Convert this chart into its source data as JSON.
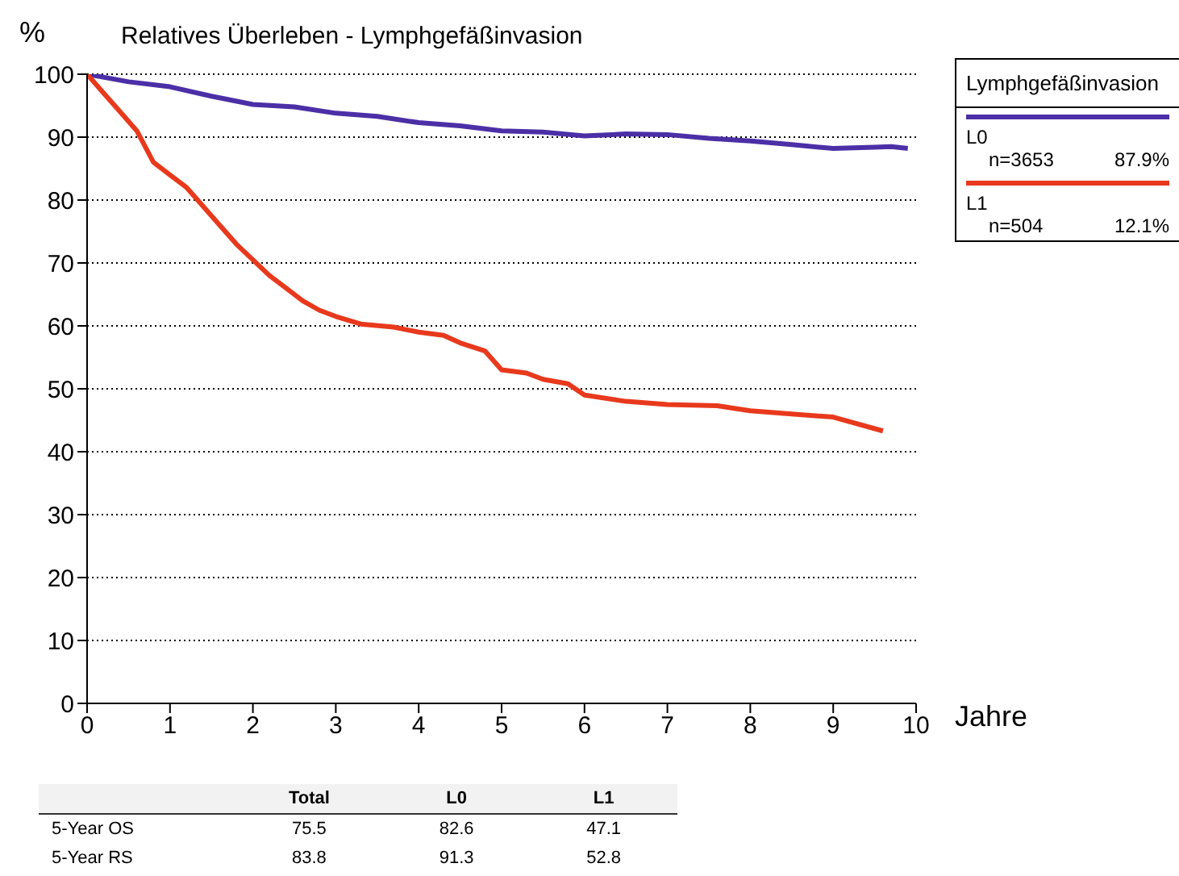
{
  "chart_data": {
    "type": "line",
    "title": "Relatives Überleben - Lymphgefäßinvasion",
    "xlabel": "Jahre",
    "ylabel": "%",
    "legend_title": "Lymphgefäßinvasion",
    "legend": "top right",
    "grid": "y",
    "marker": "none",
    "line_style": "solid",
    "xlim": [
      0,
      10
    ],
    "xticks": [
      0,
      1,
      2,
      3,
      4,
      5,
      6,
      7,
      8,
      9,
      10
    ],
    "ylim": [
      0,
      100
    ],
    "yticks": [
      0,
      10,
      20,
      30,
      40,
      50,
      60,
      70,
      80,
      90,
      100
    ],
    "series": [
      {
        "name": "L0",
        "color": "#4b2fa6",
        "x": [
          0,
          0.5,
          1,
          1.5,
          2,
          2.5,
          3,
          3.5,
          4,
          4.5,
          5,
          5.5,
          6,
          6.5,
          7,
          7.5,
          8,
          8.5,
          9,
          9.5,
          9.7,
          9.9
        ],
        "values": [
          100,
          98.8,
          98,
          96.5,
          95.2,
          94.8,
          93.8,
          93.3,
          92.3,
          91.8,
          91,
          90.8,
          90.2,
          90.5,
          90.4,
          89.8,
          89.4,
          88.8,
          88.2,
          88.4,
          88.5,
          88.2
        ]
      },
      {
        "name": "L1",
        "color": "#e8391d",
        "x": [
          0,
          0.2,
          0.4,
          0.6,
          0.8,
          1,
          1.2,
          1.4,
          1.6,
          1.8,
          2,
          2.2,
          2.4,
          2.6,
          2.8,
          3,
          3.3,
          3.7,
          4,
          4.3,
          4.5,
          4.8,
          5,
          5.3,
          5.5,
          5.8,
          6,
          6.5,
          7,
          7.6,
          8,
          8.5,
          9,
          9.6
        ],
        "values": [
          100,
          97,
          94,
          91,
          86,
          84,
          82,
          79,
          76,
          73,
          70.5,
          68,
          66,
          64,
          62.5,
          61.5,
          60.3,
          59.8,
          59,
          58.5,
          57.3,
          56,
          53,
          52.5,
          51.5,
          50.8,
          49,
          48,
          47.5,
          47.3,
          46.5,
          46,
          45.5,
          43.3
        ]
      }
    ],
    "annotations": [
      "n=3653",
      "87.9%",
      "n=504",
      "12.1%",
      "Total",
      "L0",
      "L1",
      "5-Year OS",
      "75.5",
      "82.6",
      "47.1",
      "5-Year RS",
      "83.8",
      "91.3",
      "52.8"
    ]
  }
}
